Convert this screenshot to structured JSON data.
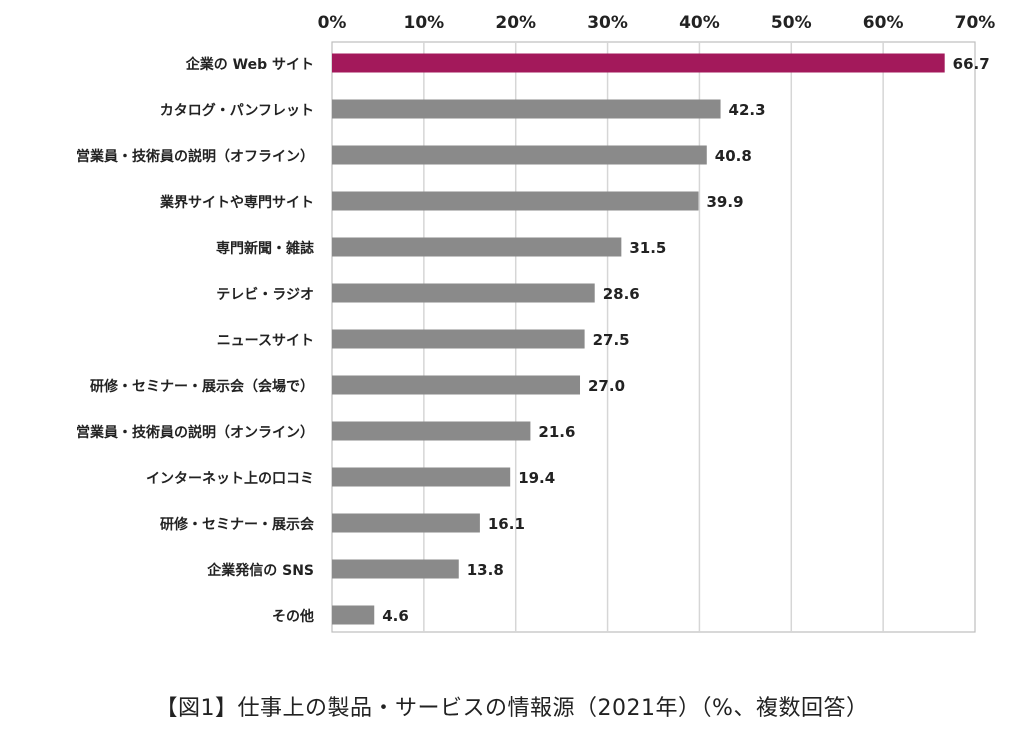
{
  "chart_data": {
    "type": "bar",
    "orientation": "horizontal",
    "categories": [
      "企業の Web サイト",
      "カタログ・パンフレット",
      "営業員・技術員の説明（オフライン）",
      "業界サイトや専門サイト",
      "専門新聞・雑誌",
      "テレビ・ラジオ",
      "ニュースサイト",
      "研修・セミナー・展示会（会場で）",
      "営業員・技術員の説明（オンライン）",
      "インターネット上の口コミ",
      "研修・セミナー・展示会",
      "企業発信の SNS",
      "その他"
    ],
    "values": [
      66.7,
      42.3,
      40.8,
      39.9,
      31.5,
      28.6,
      27.5,
      27.0,
      21.6,
      19.4,
      16.1,
      13.8,
      4.6
    ],
    "value_labels": [
      "66.7",
      "42.3",
      "40.8",
      "39.9",
      "31.5",
      "28.6",
      "27.5",
      "27.0",
      "21.6",
      "19.4",
      "16.1",
      "13.8",
      "4.6"
    ],
    "x_ticks": [
      "0%",
      "10%",
      "20%",
      "30%",
      "40%",
      "50%",
      "60%",
      "70%"
    ],
    "xlim": [
      0,
      70
    ],
    "grid": true,
    "axis_position": "top",
    "highlight_index": 0,
    "colors": {
      "highlight": "#a3195b",
      "bar": "#8a8a8a",
      "grid": "#d6d6d6",
      "frame": "#bdbdbd"
    }
  },
  "caption": "【図1】仕事上の製品・サービスの情報源（2021年）（%、複数回答）"
}
